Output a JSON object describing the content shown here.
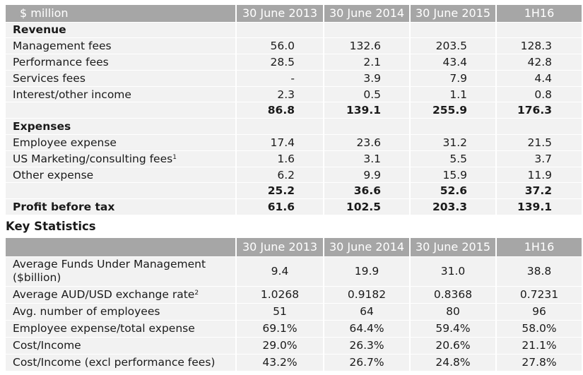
{
  "income_table": {
    "header": [
      "$ million",
      "30 June 2013",
      "30 June 2014",
      "30 June 2015",
      "1H16"
    ],
    "revenue_label": "Revenue",
    "revenue_rows": [
      {
        "label": "Management fees",
        "values": [
          "56.0",
          "132.6",
          "203.5",
          "128.3"
        ]
      },
      {
        "label": "Performance fees",
        "values": [
          "28.5",
          "2.1",
          "43.4",
          "42.8"
        ]
      },
      {
        "label": "Services fees",
        "values": [
          "-",
          "3.9",
          "7.9",
          "4.4"
        ]
      },
      {
        "label": "Interest/other income",
        "values": [
          "2.3",
          "0.5",
          "1.1",
          "0.8"
        ]
      }
    ],
    "revenue_total": [
      "86.8",
      "139.1",
      "255.9",
      "176.3"
    ],
    "expenses_label": "Expenses",
    "expense_rows": [
      {
        "label": "Employee expense",
        "sup": "",
        "values": [
          "17.4",
          "23.6",
          "31.2",
          "21.5"
        ]
      },
      {
        "label": "US Marketing/consulting fees",
        "sup": "1",
        "values": [
          "1.6",
          "3.1",
          "5.5",
          "3.7"
        ]
      },
      {
        "label": "Other expense",
        "sup": "",
        "values": [
          "6.2",
          "9.9",
          "15.9",
          "11.9"
        ]
      }
    ],
    "expense_total": [
      "25.2",
      "36.6",
      "52.6",
      "37.2"
    ],
    "profit": {
      "label": "Profit before tax",
      "values": [
        "61.6",
        "102.5",
        "203.3",
        "139.1"
      ]
    }
  },
  "key_statistics": {
    "title": "Key Statistics",
    "header": [
      "",
      "30 June 2013",
      "30 June 2014",
      "30 June 2015",
      "1H16"
    ],
    "rows": [
      {
        "label": "Average Funds Under Management ($billion)",
        "sup": "",
        "values": [
          "9.4",
          "19.9",
          "31.0",
          "38.8"
        ]
      },
      {
        "label": "Average AUD/USD exchange rate",
        "sup": "2",
        "values": [
          "1.0268",
          "0.9182",
          "0.8368",
          "0.7231"
        ]
      },
      {
        "label": "Avg. number of employees",
        "sup": "",
        "values": [
          "51",
          "64",
          "80",
          "96"
        ]
      },
      {
        "label": "Employee expense/total expense",
        "sup": "",
        "values": [
          "69.1%",
          "64.4%",
          "59.4%",
          "58.0%"
        ]
      },
      {
        "label": "Cost/Income",
        "sup": "",
        "values": [
          "29.0%",
          "26.3%",
          "20.6%",
          "21.1%"
        ]
      },
      {
        "label": "Cost/Income (excl performance fees)",
        "sup": "",
        "values": [
          "43.2%",
          "26.7%",
          "24.8%",
          "27.8%"
        ]
      }
    ]
  }
}
